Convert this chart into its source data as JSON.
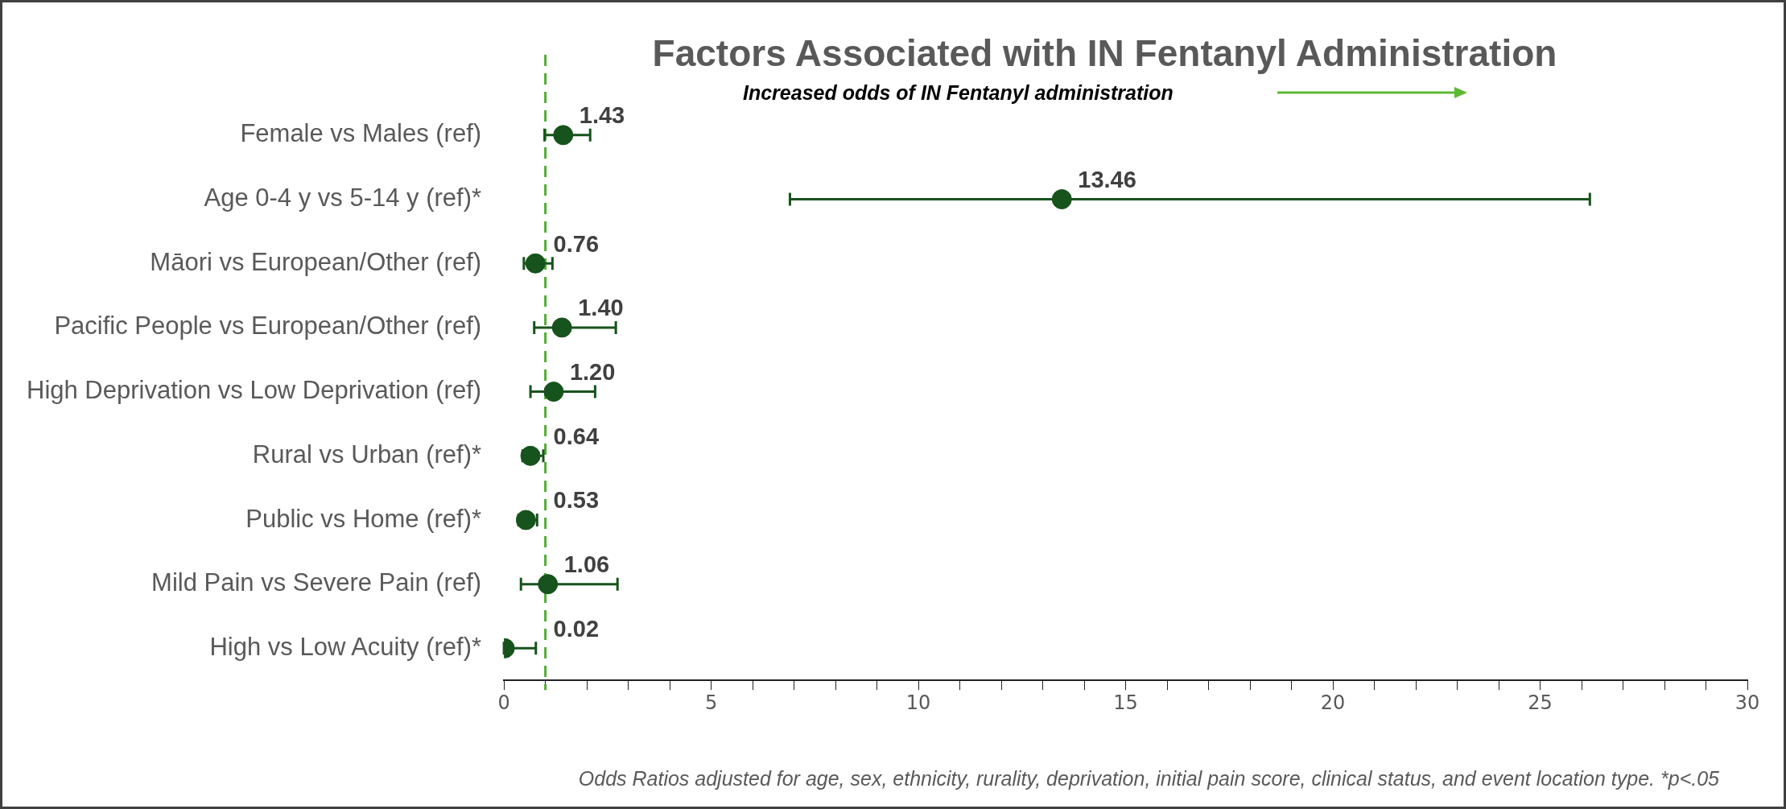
{
  "chart_data": {
    "type": "scatter",
    "orientation": "horizontal",
    "title": "Factors Associated with IN Fentanyl Administration",
    "categories": [
      "Female vs Males (ref)",
      "Age 0-4 y vs 5-14 y (ref)*",
      "Māori vs European/Other (ref)",
      "Pacific People vs European/Other (ref)",
      "High Deprivation vs Low Deprivation (ref)",
      "Rural vs Urban (ref)*",
      "Public vs Home (ref)*",
      "Mild Pain vs Severe Pain (ref)",
      "High vs Low Acuity (ref)*"
    ],
    "values": [
      1.43,
      13.46,
      0.76,
      1.4,
      1.2,
      0.64,
      0.53,
      1.06,
      0.02
    ],
    "errors": [
      [
        0.98,
        2.08
      ],
      [
        6.9,
        26.2
      ],
      [
        0.48,
        1.17
      ],
      [
        0.73,
        2.7
      ],
      [
        0.64,
        2.2
      ],
      [
        0.45,
        0.95
      ],
      [
        0.35,
        0.8
      ],
      [
        0.41,
        2.74
      ],
      [
        0.0,
        0.77
      ]
    ],
    "value_labels": [
      "1.43",
      "13.46",
      "0.76",
      "1.40",
      "1.20",
      "0.64",
      "0.53",
      "1.06",
      "0.02"
    ],
    "color": "#17531c",
    "marker": "circle",
    "xlim": [
      0,
      30
    ],
    "xticks": [
      0,
      {
        "value": 1,
        "label": null
      },
      {
        "value": 2,
        "label": null
      },
      {
        "value": 3,
        "label": null
      },
      {
        "value": 4,
        "label": null
      },
      5,
      {
        "value": 6,
        "label": null
      },
      {
        "value": 7,
        "label": null
      },
      {
        "value": 8,
        "label": null
      },
      {
        "value": 9,
        "label": null
      },
      10,
      {
        "value": 11,
        "label": null
      },
      {
        "value": 12,
        "label": null
      },
      {
        "value": 13,
        "label": null
      },
      {
        "value": 14,
        "label": null
      },
      15,
      {
        "value": 16,
        "label": null
      },
      {
        "value": 17,
        "label": null
      },
      {
        "value": 18,
        "label": null
      },
      {
        "value": 19,
        "label": null
      },
      20,
      {
        "value": 21,
        "label": null
      },
      {
        "value": 22,
        "label": null
      },
      {
        "value": 23,
        "label": null
      },
      {
        "value": 24,
        "label": null
      },
      25,
      {
        "value": 26,
        "label": null
      },
      {
        "value": 27,
        "label": null
      },
      {
        "value": 28,
        "label": null
      },
      {
        "value": 29,
        "label": null
      },
      30
    ],
    "ref_lines": [
      {
        "axis": "x",
        "value": 1,
        "color": "#4fae32",
        "line_style": "dashed"
      }
    ],
    "annotations": [
      "Increased odds of IN Fentanyl administration",
      "Odds Ratios adjusted for age, sex, ethnicity, rurality, deprivation, initial pain score, clinical status, and event location type. *p<.05"
    ],
    "grid": false,
    "legend": false
  }
}
